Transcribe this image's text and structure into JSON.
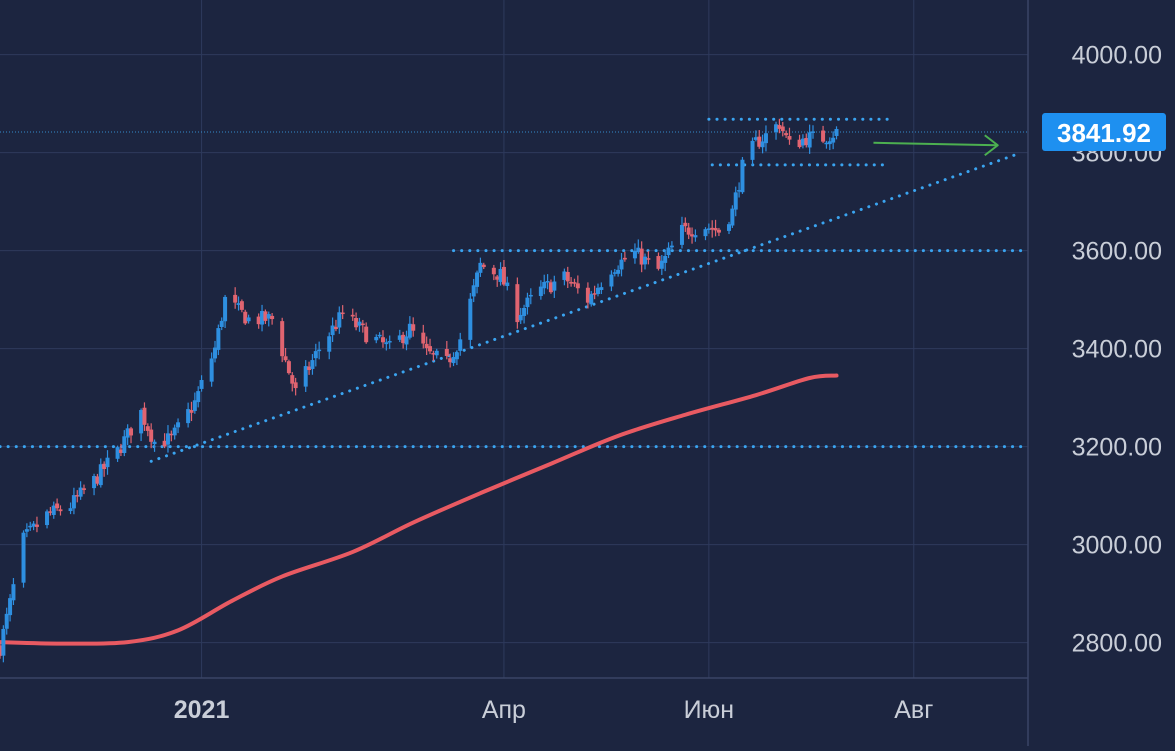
{
  "chart_data": {
    "type": "candlestick",
    "title": "",
    "xlabel": "",
    "ylabel": "",
    "ylim": [
      2680,
      4080
    ],
    "xlim": [
      "2020-11-02",
      "2021-09-04"
    ],
    "grid": true,
    "colors": {
      "background": "#1c2540",
      "grid": "#2e3a5c",
      "up": "#2e8fe0",
      "down": "#e06470",
      "moving_average": "#e85a62",
      "levels": "#3aa4f0",
      "arrow": "#4cb050",
      "price_label_bg": "#1e90f0",
      "axis_text": "#c9ced8"
    },
    "y_ticks": [
      {
        "value": 4000,
        "label": "4000.00"
      },
      {
        "value": 3800,
        "label": "3800.00"
      },
      {
        "value": 3600,
        "label": "3600.00"
      },
      {
        "value": 3400,
        "label": "3400.00"
      },
      {
        "value": 3200,
        "label": "3200.00"
      },
      {
        "value": 3000,
        "label": "3000.00"
      },
      {
        "value": 2800,
        "label": "2800.00"
      }
    ],
    "x_ticks": [
      {
        "date": "2021-01-01",
        "label": "2021",
        "bold": true
      },
      {
        "date": "2021-04-01",
        "label": "Апр",
        "bold": false
      },
      {
        "date": "2021-06-01",
        "label": "Июн",
        "bold": false
      },
      {
        "date": "2021-08-01",
        "label": "Авг",
        "bold": false
      }
    ],
    "last_price": {
      "value": 3841.92,
      "label": "3841.92"
    },
    "waypoints": [
      [
        "2020-11-02",
        2790
      ],
      [
        "2020-11-05",
        2880
      ],
      [
        "2020-11-09",
        3010
      ],
      [
        "2020-11-16",
        3060
      ],
      [
        "2020-11-23",
        3080
      ],
      [
        "2020-11-30",
        3130
      ],
      [
        "2020-12-07",
        3190
      ],
      [
        "2020-12-14",
        3270
      ],
      [
        "2020-12-18",
        3210
      ],
      [
        "2020-12-23",
        3215
      ],
      [
        "2020-12-30",
        3290
      ],
      [
        "2021-01-05",
        3400
      ],
      [
        "2021-01-08",
        3500
      ],
      [
        "2021-01-15",
        3460
      ],
      [
        "2021-01-22",
        3460
      ],
      [
        "2021-01-29",
        3310
      ],
      [
        "2021-02-05",
        3400
      ],
      [
        "2021-02-12",
        3470
      ],
      [
        "2021-02-19",
        3430
      ],
      [
        "2021-02-26",
        3400
      ],
      [
        "2021-03-04",
        3440
      ],
      [
        "2021-03-09",
        3390
      ],
      [
        "2021-03-15",
        3370
      ],
      [
        "2021-03-19",
        3420
      ],
      [
        "2021-03-25",
        3570
      ],
      [
        "2021-03-31",
        3550
      ],
      [
        "2021-04-05",
        3470
      ],
      [
        "2021-04-12",
        3520
      ],
      [
        "2021-04-19",
        3545
      ],
      [
        "2021-04-26",
        3500
      ],
      [
        "2021-05-03",
        3565
      ],
      [
        "2021-05-10",
        3595
      ],
      [
        "2021-05-17",
        3560
      ],
      [
        "2021-05-24",
        3640
      ],
      [
        "2021-05-31",
        3650
      ],
      [
        "2021-06-04",
        3640
      ],
      [
        "2021-06-08",
        3680
      ],
      [
        "2021-06-11",
        3770
      ],
      [
        "2021-06-15",
        3820
      ],
      [
        "2021-06-18",
        3835
      ],
      [
        "2021-06-22",
        3860
      ],
      [
        "2021-06-25",
        3815
      ],
      [
        "2021-06-30",
        3830
      ],
      [
        "2021-07-05",
        3830
      ],
      [
        "2021-07-09",
        3842
      ]
    ],
    "moving_average": {
      "points": [
        [
          "2020-11-02",
          2801
        ],
        [
          "2020-11-20",
          2798
        ],
        [
          "2020-12-10",
          2801
        ],
        [
          "2020-12-25",
          2825
        ],
        [
          "2021-01-10",
          2885
        ],
        [
          "2021-01-25",
          2935
        ],
        [
          "2021-02-15",
          2985
        ],
        [
          "2021-03-05",
          3045
        ],
        [
          "2021-03-25",
          3105
        ],
        [
          "2021-04-15",
          3165
        ],
        [
          "2021-05-05",
          3222
        ],
        [
          "2021-05-25",
          3265
        ],
        [
          "2021-06-15",
          3305
        ],
        [
          "2021-07-01",
          3340
        ],
        [
          "2021-07-09",
          3345
        ]
      ]
    },
    "horizontal_levels": [
      {
        "value": 3600,
        "from": "2021-03-17",
        "to": "2021-09-04"
      },
      {
        "value": 3200,
        "from": "2020-11-02",
        "to": "2021-09-04"
      },
      {
        "value": 3868,
        "from": "2021-06-01",
        "to": "2021-07-25"
      },
      {
        "value": 3775,
        "from": "2021-06-02",
        "to": "2021-07-24"
      }
    ],
    "trendline": {
      "from": [
        "2020-12-17",
        3170
      ],
      "to": [
        "2021-08-31",
        3795
      ]
    },
    "last_price_line": {
      "value": 3841.92
    },
    "arrow": {
      "from": [
        "2021-07-20",
        3820
      ],
      "to": [
        "2021-08-26",
        3815
      ]
    }
  }
}
